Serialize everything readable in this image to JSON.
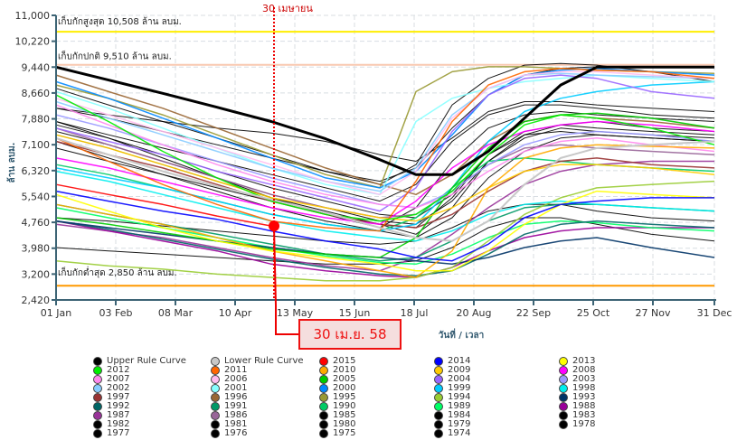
{
  "chart_data": {
    "type": "line",
    "title": "",
    "xlabel": "วันที่ / เวลา",
    "ylabel": "ล้าน ลบม.",
    "ylim": [
      2420,
      11000
    ],
    "xlim_days": [
      1,
      365
    ],
    "y_ticks": [
      "2,420",
      "3,200",
      "3,980",
      "4,760",
      "5,540",
      "6,320",
      "7,100",
      "7,880",
      "8,660",
      "9,440",
      "10,220",
      "11,000"
    ],
    "y_tick_values": [
      2420,
      3200,
      3980,
      4760,
      5540,
      6320,
      7100,
      7880,
      8660,
      9440,
      10220,
      11000
    ],
    "x_ticks": [
      "01 Jan",
      "03 Feb",
      "08 Mar",
      "10 Apr",
      "13 May",
      "15 Jun",
      "18 Jul",
      "20 Aug",
      "22 Sep",
      "25 Oct",
      "27 Nov",
      "31 Dec"
    ],
    "x_tick_days": [
      1,
      34,
      67,
      100,
      133,
      166,
      199,
      232,
      265,
      298,
      331,
      365
    ],
    "grid": true,
    "reference_lines": [
      {
        "name": "max",
        "label": "เก็บกักสูงสุด 10,508 ล้าน ลบม.",
        "value": 10508,
        "color": "#ffee00"
      },
      {
        "name": "normal",
        "label": "เก็บกักปกติ 9,510 ล้าน ลบม.",
        "value": 9510,
        "color": "#f8c8b0"
      },
      {
        "name": "min",
        "label": "เก็บกักต่ำสุด 2,850 ล้าน ลบม.",
        "value": 2850,
        "color": "#ff9900"
      }
    ],
    "marker": {
      "top_label": "30 เมษายน",
      "callout": "30 เม.ย. 58",
      "day": 120,
      "value": 4650,
      "series": "2015",
      "color": "#ff0000"
    },
    "x_days": [
      1,
      30,
      60,
      90,
      120,
      150,
      180,
      200,
      220,
      240,
      260,
      280,
      300,
      330,
      365
    ],
    "series": [
      {
        "name": "Upper Rule Curve",
        "color": "#000000",
        "width": 3,
        "values": [
          9440,
          9050,
          8650,
          8230,
          7800,
          7280,
          6650,
          6200,
          6200,
          6900,
          7900,
          8900,
          9440,
          9440,
          9440
        ]
      },
      {
        "name": "Lower Rule Curve",
        "color": "#c8c8c8",
        "width": 2,
        "values": [
          7300,
          6800,
          6300,
          5850,
          5450,
          5050,
          4600,
          4300,
          4200,
          4800,
          5900,
          6700,
          7000,
          7100,
          7200
        ]
      },
      {
        "name": "2015",
        "color": "#ff0000",
        "width": 1.5,
        "values": [
          5900,
          5600,
          5300,
          4950,
          4650,
          null,
          null,
          null,
          null,
          null,
          null,
          null,
          null,
          null,
          null
        ]
      },
      {
        "name": "2014",
        "color": "#0000ff",
        "width": 1.5,
        "values": [
          5700,
          5400,
          5100,
          4850,
          4500,
          4200,
          3950,
          3700,
          3600,
          4100,
          4900,
          5300,
          5400,
          5500,
          5500
        ]
      },
      {
        "name": "2013",
        "color": "#ffff00",
        "width": 1.5,
        "values": [
          5600,
          5100,
          4600,
          4200,
          3900,
          3700,
          3500,
          3300,
          3300,
          3900,
          4700,
          5300,
          5700,
          5600,
          5500
        ]
      },
      {
        "name": "2012",
        "color": "#00ee00",
        "width": 1.5,
        "values": [
          8600,
          7800,
          6900,
          6100,
          5400,
          5000,
          4800,
          5000,
          5700,
          6800,
          7700,
          8000,
          7900,
          7600,
          7100
        ]
      },
      {
        "name": "2011",
        "color": "#ff6600",
        "width": 1.5,
        "values": [
          7300,
          6600,
          5900,
          5300,
          4800,
          4600,
          4500,
          6000,
          7800,
          8900,
          9300,
          9400,
          9350,
          9300,
          9100
        ]
      },
      {
        "name": "2010",
        "color": "#ffaa00",
        "width": 1.5,
        "values": [
          5300,
          5000,
          4700,
          4300,
          3900,
          3600,
          3300,
          3100,
          3900,
          5800,
          6700,
          7000,
          7100,
          7050,
          7000
        ]
      },
      {
        "name": "2009",
        "color": "#ffcc00",
        "width": 1.5,
        "values": [
          7400,
          7000,
          6500,
          6000,
          5500,
          5200,
          4900,
          4800,
          5200,
          5800,
          6300,
          6500,
          6500,
          6400,
          6200
        ]
      },
      {
        "name": "2008",
        "color": "#ff00ff",
        "width": 1.5,
        "values": [
          6700,
          6400,
          6000,
          5600,
          5200,
          4900,
          4700,
          5400,
          6400,
          7100,
          7500,
          7700,
          7800,
          7700,
          7500
        ]
      },
      {
        "name": "2007",
        "color": "#ff88ee",
        "width": 1.5,
        "values": [
          8300,
          7700,
          7100,
          6500,
          6000,
          5600,
          5300,
          5200,
          5600,
          6300,
          6900,
          7200,
          7300,
          7100,
          6900
        ]
      },
      {
        "name": "2006",
        "color": "#ffbbee",
        "width": 1.5,
        "values": [
          8500,
          8000,
          7500,
          7000,
          6500,
          6000,
          5600,
          6300,
          7900,
          8800,
          9200,
          9300,
          9300,
          9200,
          9100
        ]
      },
      {
        "name": "2005",
        "color": "#00cc00",
        "width": 1.5,
        "values": [
          4900,
          4700,
          4450,
          4200,
          3950,
          3800,
          3700,
          4300,
          5800,
          7000,
          7800,
          8000,
          8050,
          7900,
          7600
        ]
      },
      {
        "name": "2004",
        "color": "#9966ff",
        "width": 1.5,
        "values": [
          7600,
          7200,
          6800,
          6300,
          5900,
          5500,
          5100,
          5800,
          7500,
          8600,
          9100,
          9200,
          9100,
          8700,
          8500
        ]
      },
      {
        "name": "2003",
        "color": "#9999ff",
        "width": 1.5,
        "values": [
          8000,
          7600,
          7100,
          6600,
          6100,
          5700,
          5300,
          5200,
          5700,
          6500,
          7100,
          7400,
          7500,
          7400,
          7200
        ]
      },
      {
        "name": "2002",
        "color": "#88ccff",
        "width": 1.5,
        "values": [
          8400,
          7900,
          7400,
          6900,
          6400,
          6000,
          5700,
          6400,
          8000,
          8800,
          9200,
          9250,
          9200,
          9150,
          9100
        ]
      },
      {
        "name": "2001",
        "color": "#88ffff",
        "width": 1.5,
        "values": [
          8700,
          8200,
          7600,
          7000,
          6400,
          5900,
          5600,
          7800,
          8500,
          8800,
          9000,
          9100,
          9200,
          9100,
          9000
        ]
      },
      {
        "name": "2000",
        "color": "#0088ff",
        "width": 1.5,
        "values": [
          9000,
          8500,
          7900,
          7300,
          6700,
          6100,
          5800,
          6300,
          7400,
          8600,
          9200,
          9350,
          9400,
          9300,
          9200
        ]
      },
      {
        "name": "1999",
        "color": "#00ccff",
        "width": 1.5,
        "values": [
          6400,
          6100,
          5800,
          5400,
          5000,
          4700,
          4500,
          4700,
          5800,
          7200,
          8100,
          8500,
          8700,
          8900,
          9000
        ]
      },
      {
        "name": "1998",
        "color": "#00eeee",
        "width": 1.5,
        "values": [
          6300,
          6000,
          5600,
          5200,
          4800,
          4500,
          4300,
          4200,
          4500,
          5000,
          5300,
          5400,
          5300,
          5200,
          5100
        ]
      },
      {
        "name": "1997",
        "color": "#993333",
        "width": 1.5,
        "values": [
          7200,
          6800,
          6400,
          5900,
          5400,
          5000,
          4700,
          4600,
          5000,
          5700,
          6300,
          6600,
          6700,
          6500,
          6400
        ]
      },
      {
        "name": "1996",
        "color": "#996633",
        "width": 1.5,
        "values": [
          9200,
          8700,
          8200,
          7600,
          7000,
          6400,
          5900,
          5600,
          6200,
          7200,
          7800,
          8000,
          7900,
          7800,
          7600
        ]
      },
      {
        "name": "1995",
        "color": "#999933",
        "width": 1.5,
        "values": [
          8900,
          8500,
          8000,
          7400,
          6800,
          6200,
          5800,
          8700,
          9300,
          9450,
          9450,
          9400,
          9350,
          9300,
          9250
        ]
      },
      {
        "name": "1994",
        "color": "#99cc33",
        "width": 1.5,
        "values": [
          3600,
          3450,
          3350,
          3200,
          3100,
          3000,
          3000,
          3100,
          3400,
          4200,
          5000,
          5500,
          5800,
          5900,
          6000
        ]
      },
      {
        "name": "1993",
        "color": "#003366",
        "width": 1.5,
        "values": [
          4800,
          4600,
          4400,
          4200,
          4000,
          3800,
          3700,
          3600,
          3500,
          3700,
          4000,
          4200,
          4300,
          4000,
          3700
        ]
      },
      {
        "name": "1992",
        "color": "#006666",
        "width": 1.5,
        "values": [
          4800,
          4550,
          4250,
          3950,
          3650,
          3400,
          3200,
          3150,
          3300,
          3800,
          4400,
          4700,
          4800,
          4700,
          4600
        ]
      },
      {
        "name": "1991",
        "color": "#009966",
        "width": 1.5,
        "values": [
          5300,
          5000,
          4700,
          4400,
          4100,
          3800,
          3600,
          3700,
          4200,
          4800,
          5200,
          5300,
          5300,
          5200,
          5100
        ]
      },
      {
        "name": "1990",
        "color": "#00cc66",
        "width": 1.5,
        "values": [
          6500,
          6200,
          5800,
          5400,
          5000,
          4700,
          4500,
          4900,
          5800,
          6600,
          6700,
          6600,
          6500,
          6400,
          6300
        ]
      },
      {
        "name": "1989",
        "color": "#00ff66",
        "width": 1.5,
        "values": [
          5200,
          4900,
          4600,
          4300,
          4000,
          3750,
          3550,
          3500,
          3800,
          4300,
          4700,
          4800,
          4750,
          4600,
          4500
        ]
      },
      {
        "name": "1988",
        "color": "#990099",
        "width": 1.5,
        "values": [
          4800,
          4500,
          4200,
          3900,
          3500,
          3300,
          3150,
          3100,
          3400,
          3900,
          4300,
          4500,
          4600,
          4600,
          4600
        ]
      },
      {
        "name": "1987",
        "color": "#993399",
        "width": 1.5,
        "values": [
          4700,
          4500,
          4300,
          4000,
          3700,
          3450,
          3300,
          3700,
          4400,
          5200,
          5900,
          6300,
          6500,
          6600,
          6600
        ]
      },
      {
        "name": "1986",
        "color": "#996699",
        "width": 1.5,
        "values": [
          7600,
          7100,
          6600,
          6100,
          5600,
          5200,
          4900,
          5000,
          5700,
          6500,
          7000,
          7100,
          7000,
          6900,
          6800
        ]
      },
      {
        "name": "1985",
        "color": "#000000",
        "width": 1,
        "values": [
          8200,
          7900,
          7500,
          7100,
          6700,
          6300,
          6000,
          6400,
          7600,
          8600,
          9200,
          9400,
          9450,
          9450,
          9450
        ]
      },
      {
        "name": "1984",
        "color": "#000000",
        "width": 1,
        "values": [
          7800,
          7300,
          6700,
          6100,
          5500,
          5000,
          4600,
          5200,
          6600,
          7600,
          8000,
          8100,
          8000,
          7900,
          7800
        ]
      },
      {
        "name": "1983",
        "color": "#000000",
        "width": 1,
        "values": [
          7500,
          7100,
          6600,
          6100,
          5600,
          5200,
          4800,
          4700,
          5400,
          6600,
          7400,
          7700,
          7800,
          7600,
          7500
        ]
      },
      {
        "name": "1982",
        "color": "#000000",
        "width": 1,
        "values": [
          4000,
          3900,
          3800,
          3700,
          3600,
          3500,
          3500,
          3600,
          4000,
          4600,
          4900,
          4900,
          4700,
          4400,
          4200
        ]
      },
      {
        "name": "1981",
        "color": "#000000",
        "width": 1,
        "values": [
          8200,
          8000,
          7800,
          7600,
          7450,
          7200,
          6800,
          6600,
          7300,
          8100,
          8400,
          8400,
          8300,
          8200,
          8100
        ]
      },
      {
        "name": "1980",
        "color": "#000000",
        "width": 1,
        "values": [
          4900,
          4800,
          4650,
          4500,
          4350,
          4200,
          4100,
          4200,
          4600,
          5100,
          5300,
          5300,
          5100,
          4900,
          4800
        ]
      },
      {
        "name": "1979",
        "color": "#000000",
        "width": 1,
        "values": [
          7800,
          7400,
          7000,
          6600,
          6200,
          5800,
          5400,
          5900,
          7200,
          8000,
          8300,
          8300,
          8200,
          8000,
          7900
        ]
      },
      {
        "name": "1978",
        "color": "#000000",
        "width": 1,
        "values": [
          8800,
          8300,
          7800,
          7300,
          6800,
          6300,
          5900,
          6500,
          8300,
          9100,
          9500,
          9550,
          9500,
          9300,
          9000
        ]
      },
      {
        "name": "1977",
        "color": "#000000",
        "width": 1,
        "values": [
          7000,
          6600,
          6200,
          5800,
          5400,
          5000,
          4700,
          4600,
          5500,
          6800,
          7400,
          7500,
          7400,
          7300,
          7200
        ]
      },
      {
        "name": "1976",
        "color": "#000000",
        "width": 1,
        "values": [
          7700,
          7300,
          6800,
          6300,
          5800,
          5400,
          5000,
          4900,
          5600,
          6800,
          7500,
          7700,
          7600,
          7500,
          7400
        ]
      },
      {
        "name": "1975",
        "color": "#000000",
        "width": 1,
        "values": [
          7400,
          7000,
          6500,
          6000,
          5500,
          5100,
          4700,
          4400,
          5200,
          6600,
          7300,
          7600,
          7500,
          7400,
          7300
        ]
      },
      {
        "name": "1974",
        "color": "#000000",
        "width": 1,
        "values": [
          7200,
          6700,
          6200,
          5700,
          5200,
          4800,
          4500,
          4300,
          4900,
          6100,
          6900,
          7300,
          7400,
          7300,
          7200
        ]
      }
    ]
  },
  "legend_columns": [
    [
      "Upper Rule Curve",
      "2012",
      "2007",
      "2002",
      "1997",
      "1992",
      "1987",
      "1982",
      "1977"
    ],
    [
      "Lower Rule Curve",
      "2011",
      "2006",
      "2001",
      "1996",
      "1991",
      "1986",
      "1981",
      "1976"
    ],
    [
      "2015",
      "2010",
      "2005",
      "2000",
      "1995",
      "1990",
      "1985",
      "1980",
      "1975"
    ],
    [
      "2014",
      "2009",
      "2004",
      "1999",
      "1994",
      "1989",
      "1984",
      "1979",
      "1974"
    ],
    [
      "2013",
      "2008",
      "2003",
      "1998",
      "1993",
      "1988",
      "1983",
      "1978"
    ]
  ]
}
